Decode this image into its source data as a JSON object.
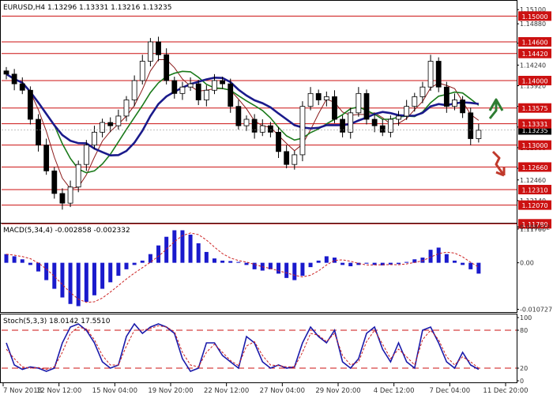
{
  "chart_data": [
    {
      "type": "candlestick",
      "panel": "price",
      "title": "EURUSD,H4  1.13296 1.13331 1.13216 1.13235",
      "symbol": "EURUSD",
      "timeframe": "H4",
      "ohlc_readout": {
        "open": 1.13296,
        "high": 1.13331,
        "low": 1.13216,
        "close": 1.13235
      },
      "current_price": 1.13235,
      "ylim": [
        1.116,
        1.152
      ],
      "y_ticks": [
        1.151,
        1.1488,
        1.1458,
        1.1424,
        1.1392,
        1.136,
        1.1328,
        1.1296,
        1.1264,
        1.1246,
        1.1214,
        1.117
      ],
      "y_tick_labels": [
        "1.15100",
        "1.14880",
        "1.14580",
        "1.14240",
        "1.13920",
        "1.13600",
        "1.13280",
        "1.12960",
        "1.12640",
        "1.12460",
        "1.12140",
        "1.11700"
      ],
      "levels": [
        {
          "value": 1.15,
          "label": "1.15000"
        },
        {
          "value": 1.146,
          "label": "1.14600"
        },
        {
          "value": 1.1442,
          "label": "1.14420"
        },
        {
          "value": 1.14,
          "label": "1.14000"
        },
        {
          "value": 1.13575,
          "label": "1.13575"
        },
        {
          "value": 1.13331,
          "label": "1.13331"
        },
        {
          "value": 1.13,
          "label": "1.13000"
        },
        {
          "value": 1.1266,
          "label": "1.12660"
        },
        {
          "value": 1.1231,
          "label": "1.12310"
        },
        {
          "value": 1.1207,
          "label": "1.12070"
        },
        {
          "value": 1.1178,
          "label": "1.11780"
        }
      ],
      "x_labels": [
        "7 Nov 2018",
        "12 Nov 12:00",
        "15 Nov 04:00",
        "19 Nov 20:00",
        "22 Nov 12:00",
        "27 Nov 04:00",
        "29 Nov 20:00",
        "4 Dec 12:00",
        "7 Dec 04:00",
        "11 Dec 20:00"
      ],
      "close_path": [
        1.141,
        1.1395,
        1.1385,
        1.134,
        1.13,
        1.126,
        1.1225,
        1.121,
        1.1235,
        1.127,
        1.13,
        1.132,
        1.1335,
        1.133,
        1.1345,
        1.137,
        1.14,
        1.143,
        1.146,
        1.144,
        1.14,
        1.138,
        1.139,
        1.1395,
        1.137,
        1.1385,
        1.14,
        1.1395,
        1.136,
        1.133,
        1.134,
        1.132,
        1.133,
        1.132,
        1.129,
        1.127,
        1.1285,
        1.136,
        1.138,
        1.137,
        1.1375,
        1.134,
        1.132,
        1.135,
        1.138,
        1.134,
        1.133,
        1.132,
        1.134,
        1.1345,
        1.136,
        1.1375,
        1.139,
        1.143,
        1.139,
        1.136,
        1.137,
        1.135,
        1.131,
        1.1323
      ],
      "series": [
        {
          "name": "MA-fast",
          "color": "#8b1a1a"
        },
        {
          "name": "MA-mid",
          "color": "#1a7a1a"
        },
        {
          "name": "MA-slow",
          "color": "#1a1a8b"
        }
      ],
      "annotations": [
        {
          "type": "arrow-up",
          "color": "#2e7d32",
          "level": 1.137
        },
        {
          "type": "arrow-down",
          "color": "#c0392b",
          "level": 1.1275
        }
      ]
    },
    {
      "type": "histogram",
      "panel": "macd",
      "title": "MACD(5,34,4) -0.002858 -0.002332",
      "ylim": [
        -0.011,
        0.0085
      ],
      "y_ticks": [
        0.008272,
        0.0,
        -0.010727
      ],
      "y_tick_labels": [
        "0.008272",
        "0.00",
        "-0.010727"
      ],
      "values": [
        0.002,
        0.0015,
        0.0008,
        -0.0005,
        -0.002,
        -0.004,
        -0.006,
        -0.008,
        -0.0095,
        -0.01,
        -0.009,
        -0.0075,
        -0.006,
        -0.0045,
        -0.003,
        -0.0015,
        -0.0005,
        0.0005,
        0.002,
        0.004,
        0.006,
        0.0075,
        0.0075,
        0.0065,
        0.0045,
        0.0025,
        0.001,
        0.0005,
        0.0004,
        0.0002,
        -0.0005,
        -0.0015,
        -0.0018,
        -0.0015,
        -0.0025,
        -0.0035,
        -0.004,
        -0.003,
        -0.001,
        0.0005,
        0.0015,
        0.0012,
        -0.0005,
        -0.0008,
        -0.0005,
        -0.0002,
        -0.0005,
        -0.0006,
        -0.0004,
        -0.0003,
        0.0002,
        0.0008,
        0.0012,
        0.003,
        0.0035,
        0.002,
        0.0005,
        -0.0005,
        -0.0015,
        -0.0025
      ]
    },
    {
      "type": "line",
      "panel": "stochastic",
      "title": "Stoch(5,3,3) 18.0142 17.5510",
      "ylim": [
        0,
        100
      ],
      "y_ticks": [
        100,
        80,
        20,
        0
      ],
      "y_tick_labels": [
        "100",
        "80",
        "20",
        "0"
      ],
      "levels": [
        80,
        20
      ],
      "series": [
        {
          "name": "%K",
          "color": "#1a1aaa",
          "values": [
            60,
            25,
            18,
            22,
            20,
            15,
            20,
            60,
            85,
            90,
            80,
            60,
            30,
            20,
            25,
            70,
            90,
            75,
            85,
            90,
            85,
            75,
            35,
            15,
            20,
            60,
            60,
            40,
            30,
            20,
            70,
            60,
            30,
            20,
            25,
            20,
            22,
            60,
            85,
            70,
            60,
            80,
            30,
            20,
            35,
            75,
            85,
            50,
            30,
            60,
            30,
            20,
            80,
            85,
            60,
            30,
            20,
            45,
            25,
            18
          ]
        },
        {
          "name": "%D",
          "color": "#cc2222",
          "values": [
            50,
            35,
            22,
            20,
            21,
            18,
            22,
            45,
            75,
            85,
            82,
            65,
            40,
            25,
            25,
            55,
            80,
            80,
            83,
            87,
            85,
            78,
            45,
            25,
            22,
            45,
            58,
            45,
            32,
            24,
            55,
            62,
            40,
            25,
            24,
            22,
            22,
            45,
            75,
            72,
            62,
            75,
            40,
            25,
            30,
            62,
            80,
            58,
            35,
            50,
            38,
            25,
            65,
            80,
            65,
            38,
            25,
            38,
            30,
            20
          ]
        }
      ]
    }
  ]
}
